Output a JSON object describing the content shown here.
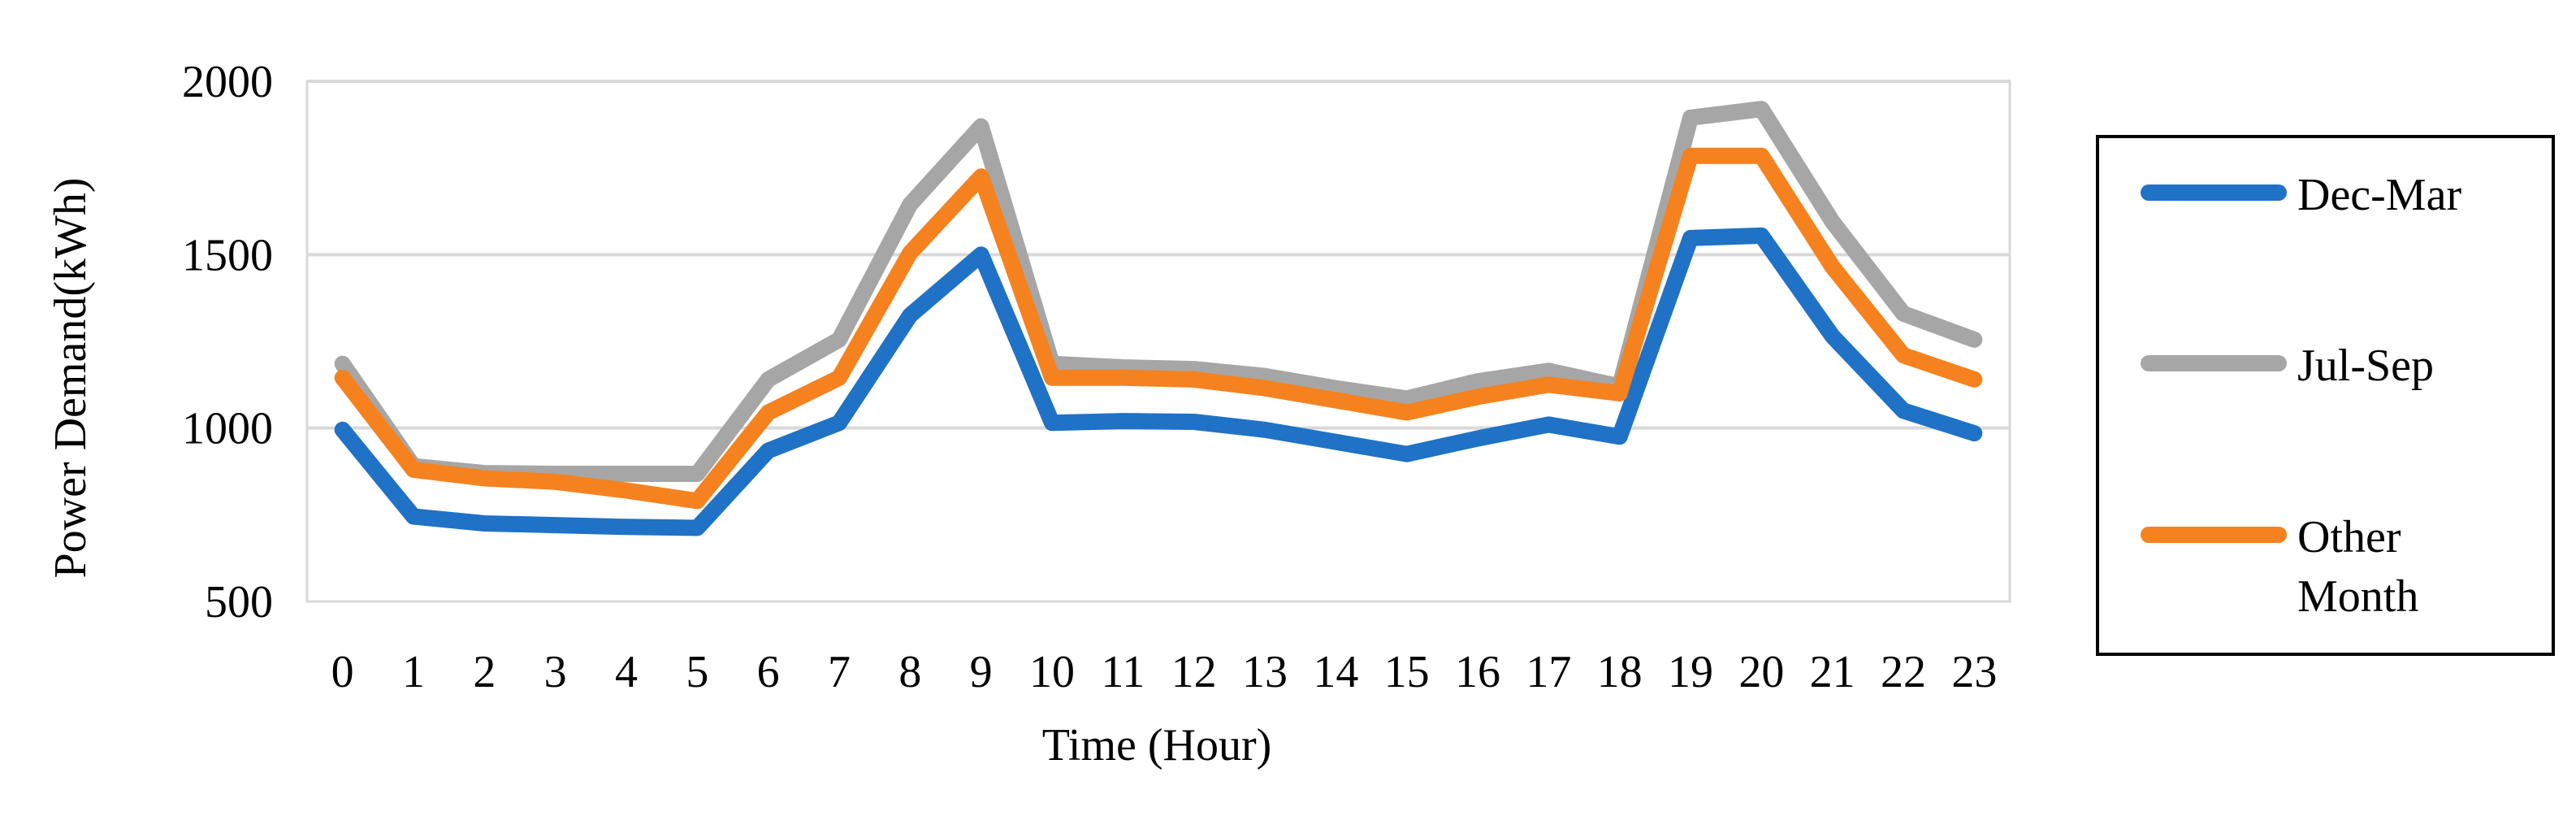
{
  "chart_data": {
    "type": "line",
    "title": "",
    "xlabel": "Time (Hour)",
    "ylabel": "Power Demand(kWh)",
    "categories": [
      "0",
      "1",
      "2",
      "3",
      "4",
      "5",
      "6",
      "7",
      "8",
      "9",
      "10",
      "11",
      "12",
      "13",
      "14",
      "15",
      "16",
      "17",
      "18",
      "19",
      "20",
      "21",
      "22",
      "23"
    ],
    "ylim": [
      500,
      2000
    ],
    "yticks": [
      "500",
      "1000",
      "1500",
      "2000"
    ],
    "grid": "horizontal",
    "legend_position": "right",
    "series": [
      {
        "name": "Dec-Mar",
        "color": "#1f72c6",
        "values": [
          995,
          745,
          725,
          720,
          715,
          712,
          935,
          1015,
          1325,
          1500,
          1015,
          1020,
          1018,
          995,
          960,
          925,
          970,
          1010,
          975,
          1548,
          1555,
          1265,
          1050,
          985
        ]
      },
      {
        "name": "Jul-Sep",
        "color": "#a6a6a6",
        "values": [
          1185,
          890,
          870,
          868,
          868,
          868,
          1140,
          1255,
          1645,
          1870,
          1185,
          1175,
          1170,
          1150,
          1115,
          1085,
          1135,
          1165,
          1120,
          1895,
          1920,
          1595,
          1330,
          1255
        ]
      },
      {
        "name": "Other Month",
        "color": "#f5821f",
        "values": [
          1145,
          880,
          855,
          845,
          820,
          790,
          1045,
          1145,
          1505,
          1725,
          1145,
          1145,
          1140,
          1115,
          1080,
          1045,
          1090,
          1125,
          1100,
          1785,
          1785,
          1465,
          1210,
          1140
        ]
      }
    ]
  }
}
